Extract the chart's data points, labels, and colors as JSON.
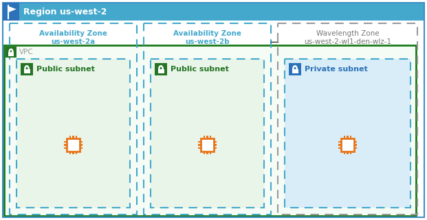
{
  "bg_color": "#ffffff",
  "region_label": "Region us-west-2",
  "region_bg": "#e8f4fb",
  "region_border": "#3d8fc6",
  "vpc_label": "VPC",
  "vpc_bg": "#f5fbf5",
  "vpc_border": "#1a7a1a",
  "az1_label": "Availability Zone\nus-west-2a",
  "az2_label": "Availability Zone\nus-west-2b",
  "wz_label": "Wavelength Zone\nus-west-2-wl1-den-wlz-1",
  "az_border": "#44a8cc",
  "wz_border": "#999999",
  "subnet1_label": "Public subnet",
  "subnet2_label": "Public subnet",
  "subnet3_label": "Private subnet",
  "subnet1_bg": "#e8f5e8",
  "subnet2_bg": "#e8f5e8",
  "subnet3_bg": "#d8edf8",
  "lock_green": "#257325",
  "lock_blue": "#2d72b8",
  "chip_color": "#e8751a",
  "text_blue": "#44a8cc",
  "text_gray": "#777777",
  "header_bg": "#44a8cc",
  "flag_bg": "#2d72b8",
  "line_color": "#333333"
}
